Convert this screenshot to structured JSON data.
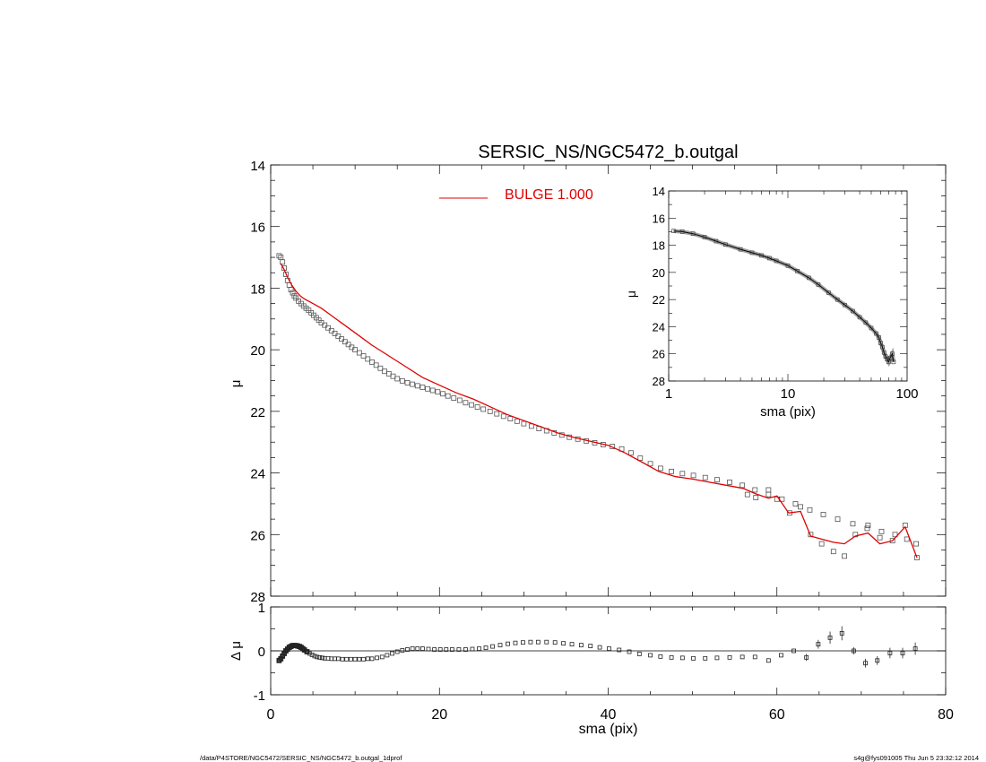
{
  "chart_data": [
    {
      "panel": "main",
      "type": "scatter",
      "title": "SERSIC_NS/NGC5472_b.outgal",
      "xlabel": "",
      "ylabel": "μ",
      "xlim": [
        0,
        80
      ],
      "ylim": [
        28,
        14
      ],
      "y_inverted": true,
      "yticks": [
        14,
        16,
        18,
        20,
        22,
        24,
        26,
        28
      ],
      "legend": {
        "label": "BULGE  1.000",
        "color": "#e00000",
        "placement": "top-center"
      },
      "series": [
        {
          "name": "",
          "style": "open-square-markers",
          "color": "#555555",
          "x": [
            1.0,
            1.2,
            1.4,
            1.6,
            1.8,
            2.0,
            2.2,
            2.4,
            2.6,
            2.8,
            3.0,
            3.3,
            3.6,
            3.9,
            4.2,
            4.5,
            4.8,
            5.1,
            5.4,
            5.7,
            6.0,
            6.4,
            6.8,
            7.2,
            7.6,
            8.0,
            8.4,
            8.8,
            9.2,
            9.6,
            10.0,
            10.5,
            11.0,
            11.5,
            12.0,
            12.5,
            13.0,
            13.5,
            14.0,
            14.5,
            15.0,
            15.6,
            16.2,
            16.8,
            17.4,
            18.0,
            18.6,
            19.2,
            19.8,
            20.4,
            21.0,
            21.7,
            22.4,
            23.1,
            23.8,
            24.5,
            25.2,
            26.0,
            26.8,
            27.6,
            28.4,
            29.2,
            30.0,
            30.9,
            31.8,
            32.7,
            33.6,
            34.5,
            35.4,
            36.4,
            37.4,
            38.4,
            39.4,
            40.5,
            41.6,
            42.7,
            43.8,
            45.0,
            46.2,
            47.5,
            48.8,
            50.1,
            51.5,
            52.9,
            54.4,
            55.9,
            57.4,
            59.0,
            60.6,
            62.2,
            63.9,
            65.5,
            67.2,
            69.0,
            70.7,
            72.4,
            74.0,
            75.4,
            76.5
          ],
          "y": [
            16.95,
            17.0,
            17.15,
            17.35,
            17.55,
            17.75,
            17.9,
            18.05,
            18.15,
            18.25,
            18.32,
            18.42,
            18.5,
            18.58,
            18.65,
            18.72,
            18.8,
            18.88,
            18.96,
            19.04,
            19.12,
            19.2,
            19.29,
            19.38,
            19.47,
            19.56,
            19.65,
            19.74,
            19.83,
            19.92,
            20.0,
            20.1,
            20.2,
            20.3,
            20.4,
            20.5,
            20.6,
            20.7,
            20.78,
            20.86,
            20.94,
            21.01,
            21.07,
            21.12,
            21.17,
            21.22,
            21.27,
            21.32,
            21.37,
            21.43,
            21.5,
            21.57,
            21.64,
            21.72,
            21.79,
            21.86,
            21.93,
            22.0,
            22.08,
            22.16,
            22.24,
            22.32,
            22.4,
            22.48,
            22.56,
            22.63,
            22.7,
            22.77,
            22.84,
            22.9,
            22.96,
            23.02,
            23.08,
            23.14,
            23.22,
            23.35,
            23.52,
            23.7,
            23.85,
            23.95,
            24.02,
            24.08,
            24.15,
            24.22,
            24.3,
            24.4,
            24.55,
            24.7,
            24.85,
            25.0,
            25.2,
            25.35,
            25.5,
            25.65,
            25.8,
            25.9,
            26.0,
            26.15,
            26.3
          ]
        },
        {
          "name": "",
          "style": "open-square-markers",
          "color": "#555555",
          "x": [
            56.5,
            57.5,
            59.0,
            60.0,
            61.5,
            62.8,
            64.0,
            65.3,
            66.7,
            68.0,
            69.3,
            70.8,
            72.2,
            73.7,
            75.2,
            76.6
          ],
          "y": [
            24.7,
            24.8,
            24.55,
            24.85,
            25.3,
            25.1,
            26.0,
            26.3,
            26.55,
            26.7,
            26.0,
            25.7,
            26.1,
            26.2,
            25.7,
            26.75
          ]
        },
        {
          "name": "",
          "style": "line",
          "color": "#e00000",
          "x": [
            1.2,
            1.6,
            2.0,
            2.5,
            3.0,
            3.5,
            4.0,
            5.0,
            6.0,
            7.0,
            8.0,
            10.0,
            12.0,
            14.0,
            16.0,
            18.0,
            20.0,
            22.0,
            24.0,
            26.0,
            28.0,
            30.0,
            32.0,
            34.0,
            36.0,
            38.0,
            40.0,
            42.0,
            44.0,
            46.0,
            48.0,
            50.0,
            52.0,
            54.0,
            56.0,
            57.5,
            59.0,
            60.0,
            61.4,
            62.8,
            64.0,
            65.3,
            66.7,
            68.0,
            69.3,
            70.8,
            72.2,
            73.7,
            75.2,
            76.6
          ],
          "y": [
            17.2,
            17.4,
            17.65,
            17.9,
            18.1,
            18.25,
            18.35,
            18.5,
            18.65,
            18.85,
            19.05,
            19.45,
            19.85,
            20.2,
            20.55,
            20.9,
            21.15,
            21.4,
            21.6,
            21.85,
            22.1,
            22.3,
            22.5,
            22.7,
            22.85,
            22.98,
            23.1,
            23.35,
            23.65,
            23.95,
            24.12,
            24.2,
            24.3,
            24.4,
            24.5,
            24.68,
            24.82,
            24.75,
            25.3,
            25.25,
            26.05,
            26.15,
            26.25,
            26.3,
            26.05,
            25.95,
            26.3,
            26.2,
            25.75,
            26.75
          ]
        }
      ]
    },
    {
      "panel": "inset",
      "type": "scatter",
      "title": "",
      "xlabel": "sma (pix)",
      "ylabel": "μ",
      "x_scale": "log",
      "xlim": [
        1,
        100
      ],
      "xticks": [
        1,
        10,
        100
      ],
      "ylim": [
        28,
        14
      ],
      "y_inverted": true,
      "yticks": [
        14,
        16,
        18,
        20,
        22,
        24,
        26,
        28
      ],
      "series": [
        {
          "name": "",
          "style": "open-square-markers-with-line",
          "color": "#555555",
          "x": [
            1.1,
            1.3,
            1.6,
            2.0,
            2.5,
            3.0,
            4.0,
            5.0,
            6.0,
            7.0,
            8.0,
            10.0,
            12.0,
            15.0,
            18.0,
            22.0,
            26.0,
            30.0,
            35.0,
            40.0,
            45.0,
            50.0,
            55.0,
            58.0,
            60.0,
            62.0,
            64.0,
            66.0,
            68.0,
            70.0,
            72.0,
            75.0,
            77.0
          ],
          "y": [
            16.95,
            17.0,
            17.15,
            17.4,
            17.7,
            17.95,
            18.3,
            18.55,
            18.75,
            18.95,
            19.15,
            19.5,
            19.9,
            20.4,
            20.9,
            21.5,
            22.0,
            22.4,
            22.85,
            23.3,
            23.7,
            24.1,
            24.5,
            24.8,
            25.2,
            25.5,
            25.9,
            26.2,
            26.4,
            26.6,
            26.3,
            26.0,
            26.6
          ]
        }
      ]
    },
    {
      "panel": "residual",
      "type": "scatter",
      "title": "",
      "xlabel": "sma (pix)",
      "ylabel": "Δ μ",
      "xlim": [
        0,
        80
      ],
      "xticks": [
        0,
        20,
        40,
        60,
        80
      ],
      "ylim": [
        -1,
        1
      ],
      "yticks": [
        -1,
        0,
        1
      ],
      "zero_line": true,
      "series": [
        {
          "name": "",
          "style": "open-square-markers",
          "color": "#222222",
          "x": [
            1.0,
            1.2,
            1.4,
            1.6,
            1.8,
            2.0,
            2.2,
            2.4,
            2.6,
            2.8,
            3.0,
            3.2,
            3.4,
            3.6,
            3.8,
            4.0,
            4.3,
            4.6,
            4.9,
            5.2,
            5.5,
            5.8,
            6.1,
            6.4,
            6.8,
            7.2,
            7.6,
            8.0,
            8.5,
            9.0,
            9.5,
            10.0,
            10.5,
            11.0,
            11.5,
            12.0,
            12.6,
            13.2,
            13.8,
            14.4,
            15.0,
            15.6,
            16.2,
            16.8,
            17.4,
            18.0,
            18.7,
            19.4,
            20.1,
            20.8,
            21.5,
            22.3,
            23.1,
            23.9,
            24.7,
            25.5,
            26.3,
            27.2,
            28.1,
            29.0,
            29.9,
            30.8,
            31.7,
            32.7,
            33.7,
            34.7,
            35.7,
            36.8,
            37.9,
            39.0,
            40.1,
            41.3,
            42.5,
            43.7,
            45.0,
            46.2,
            47.5,
            48.8,
            50.1,
            51.5,
            52.9,
            54.4,
            55.9,
            57.4,
            59.0,
            60.5,
            62.0
          ],
          "y": [
            -0.22,
            -0.18,
            -0.12,
            -0.06,
            0.0,
            0.04,
            0.08,
            0.1,
            0.12,
            0.12,
            0.12,
            0.11,
            0.1,
            0.08,
            0.05,
            0.02,
            -0.02,
            -0.06,
            -0.09,
            -0.12,
            -0.14,
            -0.15,
            -0.16,
            -0.17,
            -0.17,
            -0.18,
            -0.18,
            -0.18,
            -0.19,
            -0.19,
            -0.19,
            -0.19,
            -0.19,
            -0.19,
            -0.18,
            -0.18,
            -0.16,
            -0.14,
            -0.1,
            -0.06,
            -0.02,
            0.01,
            0.03,
            0.05,
            0.05,
            0.05,
            0.04,
            0.03,
            0.03,
            0.03,
            0.03,
            0.03,
            0.03,
            0.04,
            0.05,
            0.07,
            0.1,
            0.13,
            0.16,
            0.18,
            0.19,
            0.2,
            0.2,
            0.2,
            0.19,
            0.17,
            0.15,
            0.13,
            0.11,
            0.08,
            0.05,
            0.02,
            -0.02,
            -0.07,
            -0.1,
            -0.13,
            -0.15,
            -0.16,
            -0.17,
            -0.17,
            -0.16,
            -0.15,
            -0.14,
            -0.14,
            -0.22,
            -0.1,
            0.0
          ]
        },
        {
          "name": "",
          "style": "open-square-markers-with-error-bars",
          "color": "#222222",
          "x": [
            63.5,
            64.9,
            66.3,
            67.7,
            69.1,
            70.5,
            71.9,
            73.4,
            74.9,
            76.4
          ],
          "y": [
            -0.15,
            0.15,
            0.3,
            0.4,
            0.0,
            -0.28,
            -0.22,
            -0.05,
            -0.05,
            0.05
          ],
          "err": [
            0.08,
            0.1,
            0.14,
            0.16,
            0.08,
            0.1,
            0.1,
            0.12,
            0.12,
            0.14
          ]
        }
      ]
    }
  ],
  "footer": {
    "left": "/data/P4STORE/NGC5472/SERSIC_NS/NGC5472_b.outgal_1dprof",
    "right": "s4g@fys091005  Thu Jun  5 23:32:12 2014"
  }
}
